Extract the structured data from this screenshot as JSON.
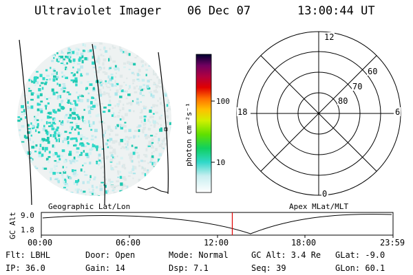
{
  "header": {
    "instrument": "Ultraviolet Imager",
    "date": "06 Dec 07",
    "time": "13:00:44 UT"
  },
  "colorbar": {
    "unit_label": "photon cm⁻²s⁻¹",
    "tick_labels": [
      "100",
      "10"
    ]
  },
  "polar_plot": {
    "hour_labels": [
      "12",
      "18",
      "6",
      "0"
    ],
    "lat_labels": [
      "60",
      "70",
      "80"
    ]
  },
  "timeline": {
    "left_label": "Geographic Lat/Lon",
    "right_label": "Apex MLat/MLT",
    "axis_label": "GC Alt",
    "y_ticks": [
      "9.0",
      "1.8"
    ],
    "x_ticks": [
      "00:00",
      "06:00",
      "12:00",
      "18:00",
      "23:59"
    ],
    "marker_color": "#e00000",
    "current_time_fraction": 0.543
  },
  "info": {
    "flt": "Flt: LBHL",
    "door": "Door: Open",
    "mode": "Mode: Normal",
    "gc_alt": "GC Alt: 3.4 Re",
    "glat": "GLat:  -9.0",
    "ip": "IP: 36.0",
    "gain": "Gain: 14",
    "dsp": "Dsp:    7.1",
    "seq": "Seq: 39",
    "glon": "GLon:  60.1"
  }
}
